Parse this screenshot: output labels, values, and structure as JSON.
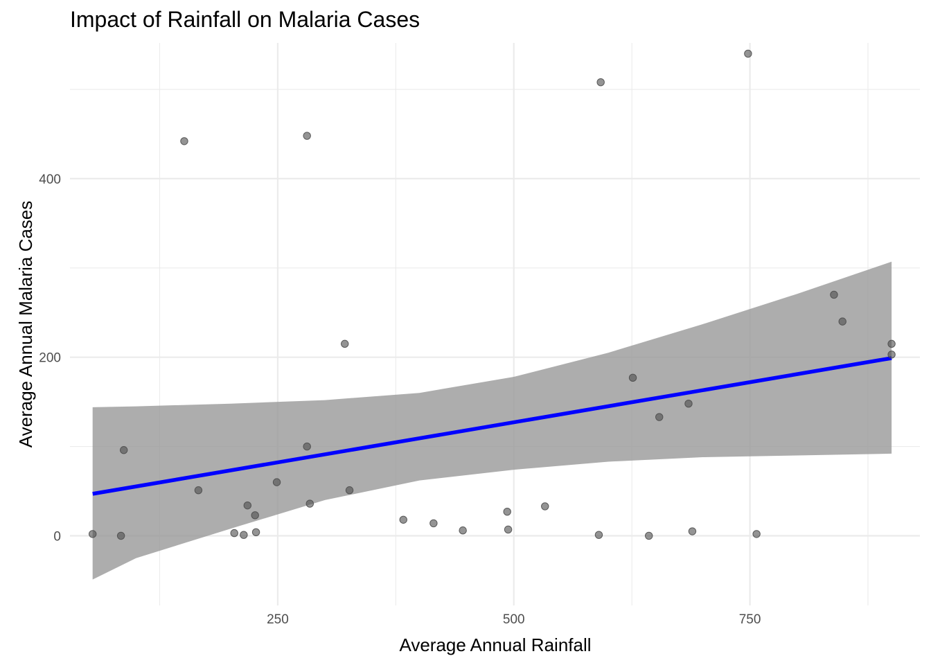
{
  "chart_data": {
    "type": "scatter",
    "title": "Impact of Rainfall on Malaria Cases",
    "xlabel": "Average Annual Rainfall",
    "ylabel": "Average Annual Malaria Cases",
    "xlim": [
      30,
      930
    ],
    "ylim": [
      -78,
      552
    ],
    "x_ticks": [
      250,
      500,
      750
    ],
    "x_tick_labels": [
      "250",
      "500",
      "750"
    ],
    "x_minor_ticks": [
      125,
      375,
      625,
      875
    ],
    "y_ticks": [
      0,
      200,
      400
    ],
    "y_tick_labels": [
      "0",
      "200",
      "400"
    ],
    "y_minor_ticks": [
      100,
      300,
      500
    ],
    "grid": true,
    "colors": {
      "points": "#4d4d4d",
      "trend_line": "#0000ff",
      "confidence_band": "#999999"
    },
    "series": [
      {
        "type": "scatter",
        "x": [
          54,
          84,
          87,
          151,
          166,
          204,
          214,
          218,
          226,
          227,
          249,
          281,
          281,
          284,
          321,
          326,
          383,
          415,
          446,
          493,
          494,
          533,
          590,
          592,
          626,
          654,
          643,
          685,
          689,
          748,
          757,
          839,
          848,
          900,
          900
        ],
        "y": [
          2,
          0,
          96,
          442,
          51,
          3,
          1,
          34,
          23,
          4,
          60,
          448,
          100,
          36,
          215,
          51,
          18,
          14,
          6,
          27,
          7,
          33,
          1,
          508,
          177,
          133,
          0,
          148,
          5,
          540,
          2,
          270,
          240,
          215,
          203
        ]
      },
      {
        "type": "line",
        "x": [
          54,
          900
        ],
        "y": [
          47,
          199
        ]
      },
      {
        "type": "area",
        "x": [
          54,
          100,
          200,
          300,
          400,
          500,
          600,
          700,
          800,
          900
        ],
        "lower": [
          -49,
          -25,
          8,
          40,
          62,
          74,
          83,
          88,
          90,
          92
        ],
        "upper": [
          144,
          145,
          148,
          152,
          160,
          178,
          205,
          237,
          271,
          307
        ]
      }
    ]
  }
}
